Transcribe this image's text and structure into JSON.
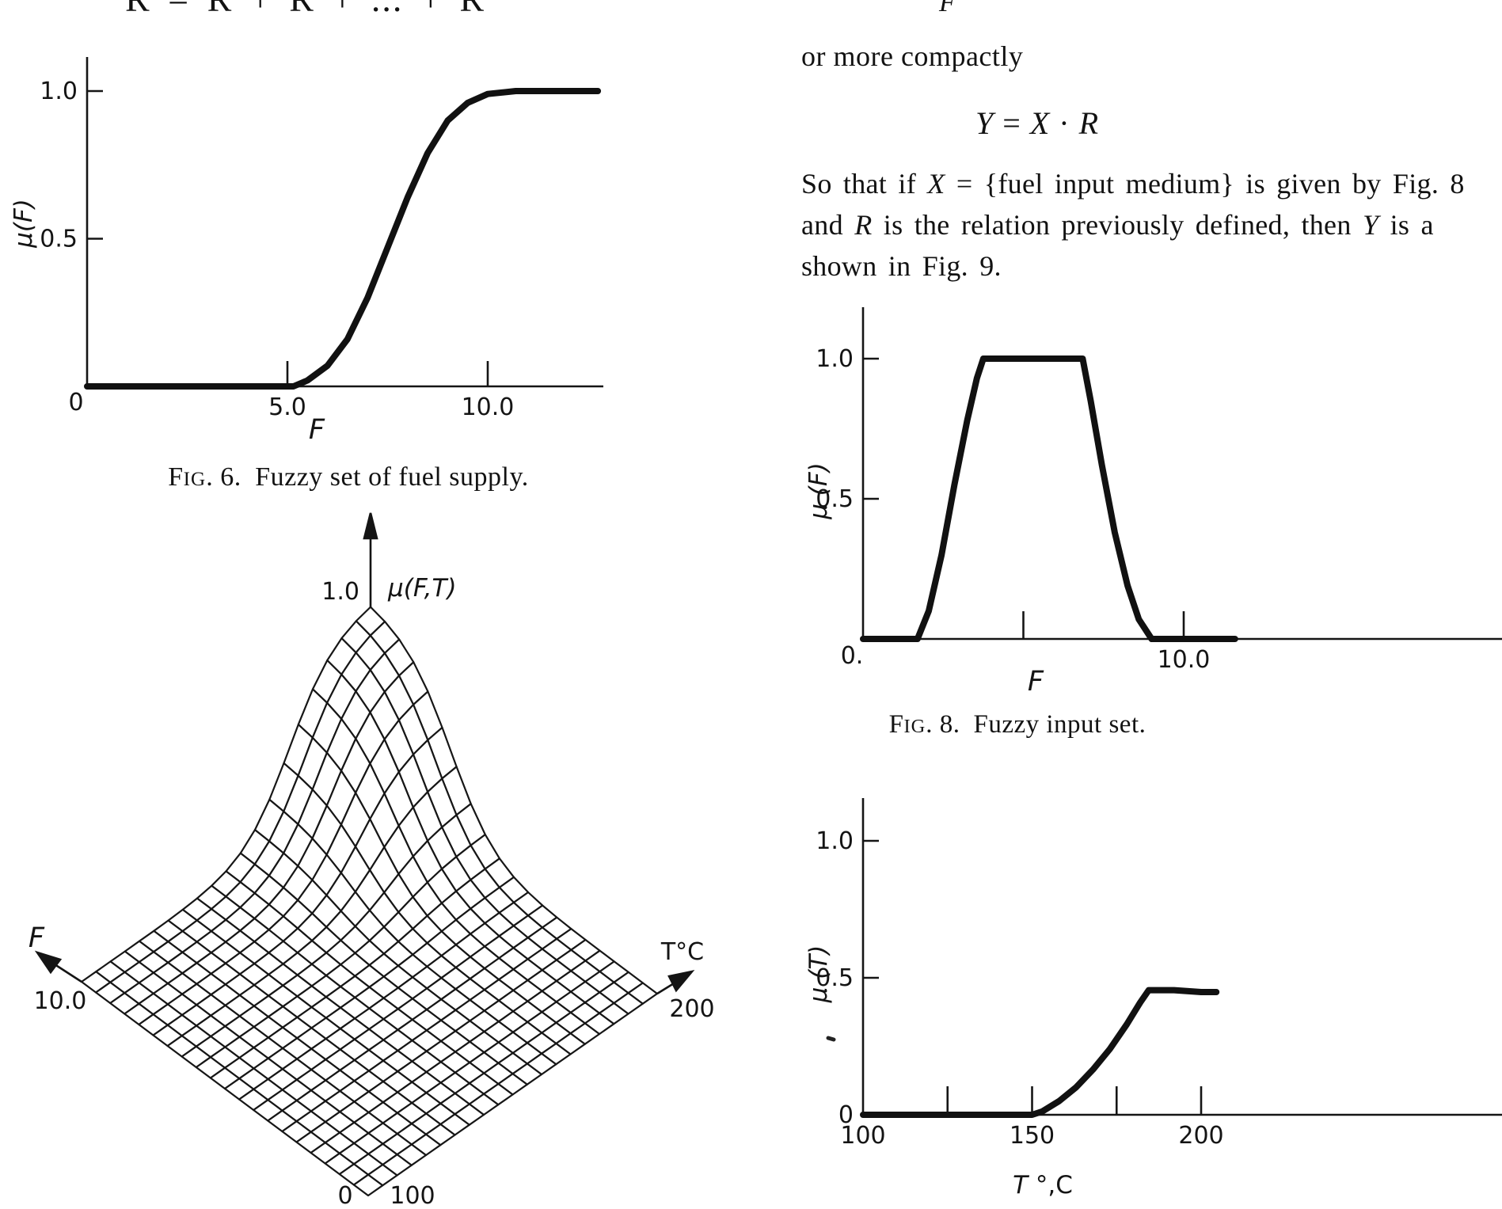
{
  "page": {
    "background": "#ffffff",
    "ink": "#141414",
    "top_equation_fragment": "R = R + R + ... + R",
    "top_right_formula_fragment": "F"
  },
  "text_column": {
    "intro": "or more compactly",
    "equation_segments": [
      {
        "t": "Y",
        "s": "i"
      },
      {
        "t": " = "
      },
      {
        "t": "X",
        "s": "i"
      },
      {
        "t": " · "
      },
      {
        "t": "R",
        "s": "i"
      }
    ],
    "paragraph_lines": [
      [
        {
          "t": "So that if "
        },
        {
          "t": "X",
          "s": "i"
        },
        {
          "t": " = {fuel input medium} is given by Fig. 8"
        }
      ],
      [
        {
          "t": "and "
        },
        {
          "t": "R",
          "s": "i"
        },
        {
          "t": " is the relation previously defined, then "
        },
        {
          "t": "Y",
          "s": "i"
        },
        {
          "t": " is a"
        }
      ],
      [
        {
          "t": "shown in Fig. 9."
        }
      ]
    ]
  },
  "captions": {
    "fig6_segments": [
      {
        "t": "F"
      },
      {
        "t": "IG",
        "s": "sm"
      },
      {
        "t": ". 6."
      },
      {
        "t": " Fuzzy set of fuel supply."
      }
    ],
    "fig8_segments": [
      {
        "t": "F"
      },
      {
        "t": "IG",
        "s": "sm"
      },
      {
        "t": ". 8."
      },
      {
        "t": " Fuzzy input set."
      }
    ]
  },
  "chart_data": [
    {
      "id": "fig6",
      "type": "line",
      "title": "Fig. 6. Fuzzy set of fuel supply.",
      "xlabel": "F",
      "ylabel": "μ(F)",
      "xmin": 0,
      "xlim": [
        0,
        12.8
      ],
      "ylim": [
        0,
        1.12
      ],
      "grid": false,
      "xticks": [
        {
          "v": 5,
          "label": "5.0"
        },
        {
          "v": 10,
          "label": "10.0"
        }
      ],
      "yticks": [
        {
          "v": 1.0,
          "label": "1.0"
        },
        {
          "v": 0.5,
          "label": "0.5"
        }
      ],
      "origin_label": "0",
      "points": [
        [
          0,
          0
        ],
        [
          5.15,
          0
        ],
        [
          5.5,
          0.02
        ],
        [
          6,
          0.07
        ],
        [
          6.5,
          0.16
        ],
        [
          7,
          0.3
        ],
        [
          7.5,
          0.47
        ],
        [
          8,
          0.64
        ],
        [
          8.5,
          0.79
        ],
        [
          9,
          0.9
        ],
        [
          9.5,
          0.96
        ],
        [
          10,
          0.99
        ],
        [
          10.7,
          1
        ],
        [
          12.75,
          1
        ]
      ]
    },
    {
      "id": "fig8",
      "type": "line",
      "title": "Fig. 8. Fuzzy input set.",
      "xlabel": "F",
      "ylabel": "μ (F)",
      "xmin": 0,
      "xlim": [
        0,
        19.9
      ],
      "ylim": [
        0,
        1.18
      ],
      "grid": false,
      "xticks": [
        {
          "v": 5,
          "label": null
        },
        {
          "v": 10,
          "label": "10.0"
        }
      ],
      "yticks": [
        {
          "v": 1.0,
          "label": "1.0"
        },
        {
          "v": 0.5,
          "label": "0.5"
        }
      ],
      "origin_label": "0.",
      "points": [
        [
          0,
          0
        ],
        [
          1.7,
          0
        ],
        [
          2.05,
          0.1
        ],
        [
          2.45,
          0.3
        ],
        [
          2.85,
          0.55
        ],
        [
          3.25,
          0.78
        ],
        [
          3.55,
          0.93
        ],
        [
          3.75,
          1
        ],
        [
          6.85,
          1
        ],
        [
          7.1,
          0.85
        ],
        [
          7.45,
          0.62
        ],
        [
          7.85,
          0.38
        ],
        [
          8.25,
          0.19
        ],
        [
          8.6,
          0.07
        ],
        [
          9,
          0
        ],
        [
          11.6,
          0
        ]
      ]
    },
    {
      "id": "fig9",
      "type": "line",
      "title": null,
      "xlabel_segments": [
        {
          "t": "T",
          "s": "i"
        },
        {
          "t": " °,C"
        }
      ],
      "ylabel": "μ (T)",
      "xmin": 100,
      "xlim": [
        100,
        289
      ],
      "ylim": [
        0,
        1.16
      ],
      "grid": false,
      "xticks": [
        {
          "v": 100,
          "label": "100",
          "dash": false
        },
        {
          "v": 125,
          "label": null
        },
        {
          "v": 150,
          "label": "150"
        },
        {
          "v": 175,
          "label": null
        },
        {
          "v": 200,
          "label": "200"
        }
      ],
      "yticks": [
        {
          "v": 1.0,
          "label": "1.0"
        },
        {
          "v": 0.5,
          "label": "0.5"
        },
        {
          "v": 0,
          "label": "0",
          "dash": false
        }
      ],
      "points": [
        [
          100,
          0
        ],
        [
          150,
          0
        ],
        [
          153,
          0.012
        ],
        [
          158,
          0.05
        ],
        [
          163,
          0.1
        ],
        [
          168,
          0.165
        ],
        [
          173,
          0.24
        ],
        [
          178,
          0.33
        ],
        [
          182,
          0.41
        ],
        [
          184.5,
          0.455
        ],
        [
          192,
          0.455
        ],
        [
          200,
          0.448
        ],
        [
          204.5,
          0.448
        ]
      ]
    },
    {
      "id": "mesh",
      "type": "surface",
      "zlabel": "μ(F,T)",
      "z_top_tick": "1.0",
      "axis_f": {
        "label": "F",
        "corner_value": "10.0",
        "origin_value": "0",
        "range": [
          0,
          10
        ]
      },
      "axis_t": {
        "label": "T°C",
        "corner_value": "200",
        "origin_value": "100",
        "range": [
          100,
          200
        ]
      },
      "z_range": [
        0,
        1
      ],
      "grid": [
        20,
        20
      ],
      "surface_shape": "bell peak of height 1.0 at back corner (F=10, T=200) falling to 0 over flat base",
      "sig_c": 0.72,
      "sig_k": 13
    }
  ]
}
